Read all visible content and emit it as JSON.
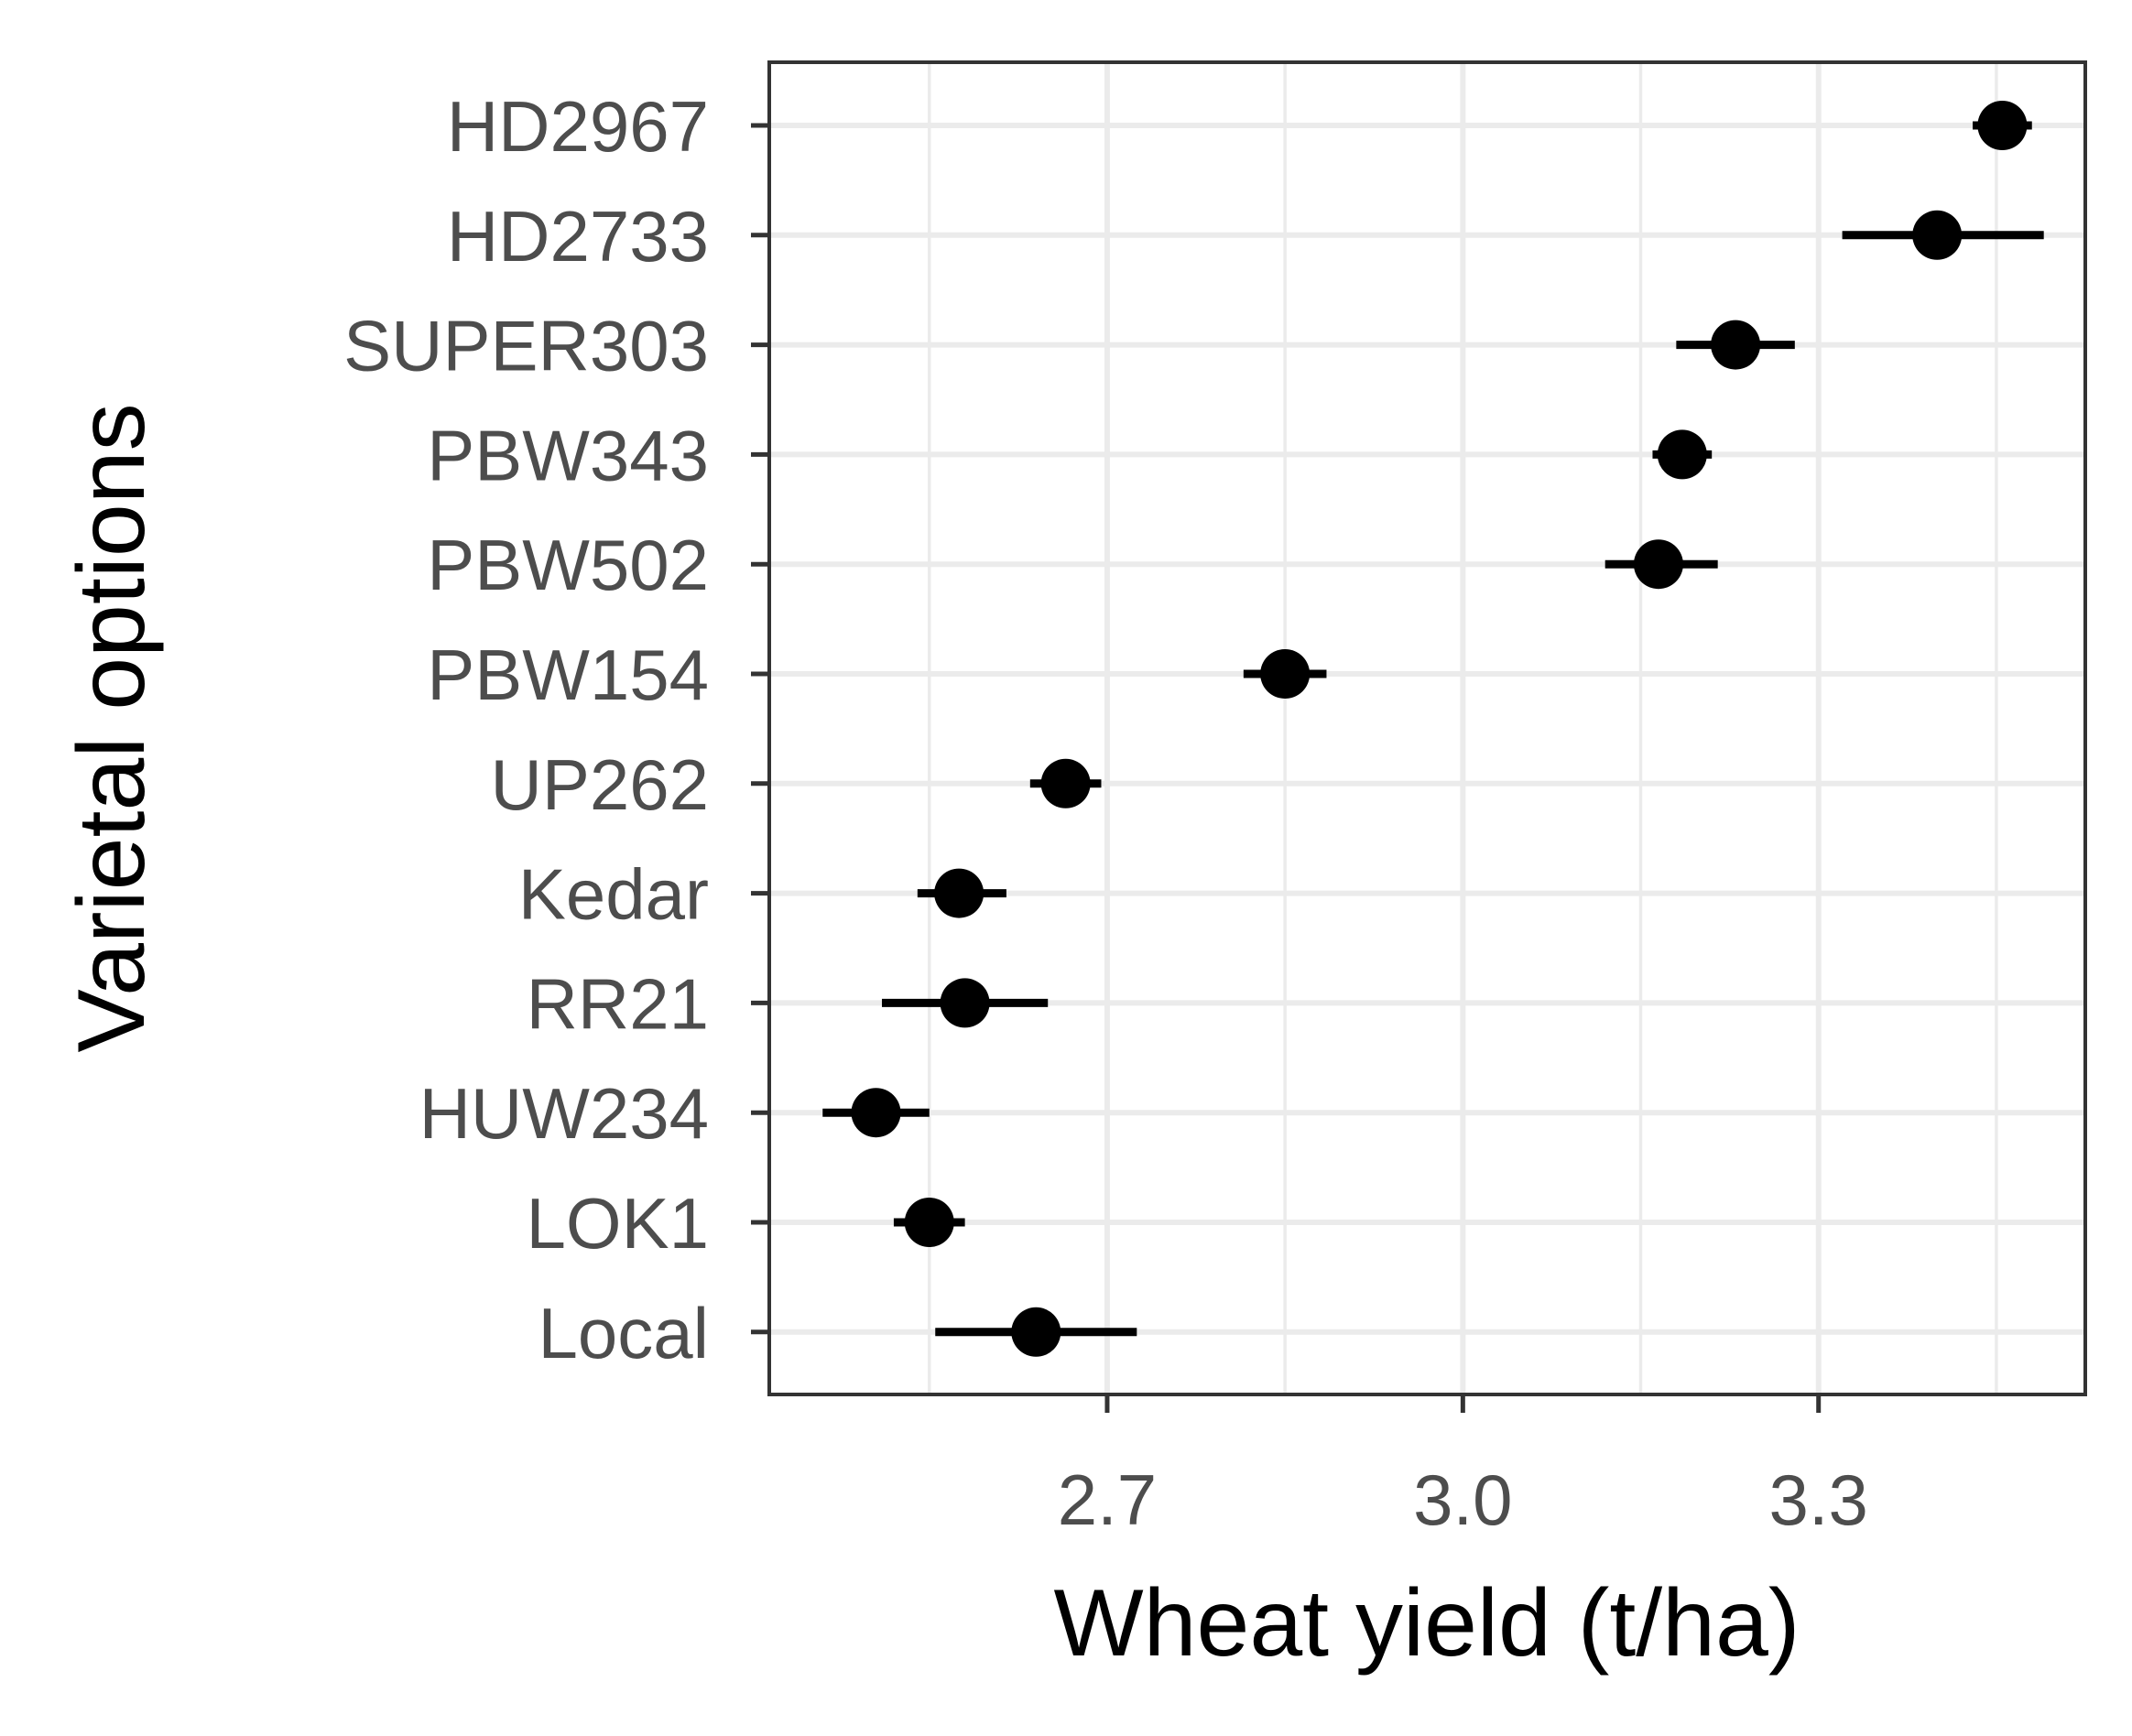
{
  "chart_data": {
    "type": "scatter",
    "title": "",
    "xlabel": "Wheat yield (t/ha)",
    "ylabel": "Varietal options",
    "xlim": [
      2.415,
      3.525
    ],
    "x_ticks": [
      2.7,
      3.0,
      3.3
    ],
    "x_tick_labels": [
      "2.7",
      "3.0",
      "3.3"
    ],
    "x_minor_ticks": [
      2.55,
      2.85,
      3.15,
      3.45
    ],
    "grid": true,
    "legend": "none",
    "point_color": "#000000",
    "categories": [
      "HD2967",
      "HD2733",
      "SUPER303",
      "PBW343",
      "PBW502",
      "PBW154",
      "UP262",
      "Kedar",
      "RR21",
      "HUW234",
      "LOK1",
      "Local"
    ],
    "series": [
      {
        "points": [
          {
            "category": "HD2967",
            "value": 3.455,
            "lower": 3.43,
            "upper": 3.48
          },
          {
            "category": "HD2733",
            "value": 3.4,
            "lower": 3.32,
            "upper": 3.49
          },
          {
            "category": "SUPER303",
            "value": 3.23,
            "lower": 3.18,
            "upper": 3.28
          },
          {
            "category": "PBW343",
            "value": 3.185,
            "lower": 3.16,
            "upper": 3.21
          },
          {
            "category": "PBW502",
            "value": 3.165,
            "lower": 3.12,
            "upper": 3.215
          },
          {
            "category": "PBW154",
            "value": 2.85,
            "lower": 2.815,
            "upper": 2.885
          },
          {
            "category": "UP262",
            "value": 2.665,
            "lower": 2.635,
            "upper": 2.695
          },
          {
            "category": "Kedar",
            "value": 2.575,
            "lower": 2.54,
            "upper": 2.615
          },
          {
            "category": "RR21",
            "value": 2.58,
            "lower": 2.51,
            "upper": 2.65
          },
          {
            "category": "HUW234",
            "value": 2.505,
            "lower": 2.46,
            "upper": 2.55
          },
          {
            "category": "LOK1",
            "value": 2.55,
            "lower": 2.52,
            "upper": 2.58
          },
          {
            "category": "Local",
            "value": 2.64,
            "lower": 2.555,
            "upper": 2.725
          }
        ]
      }
    ]
  }
}
